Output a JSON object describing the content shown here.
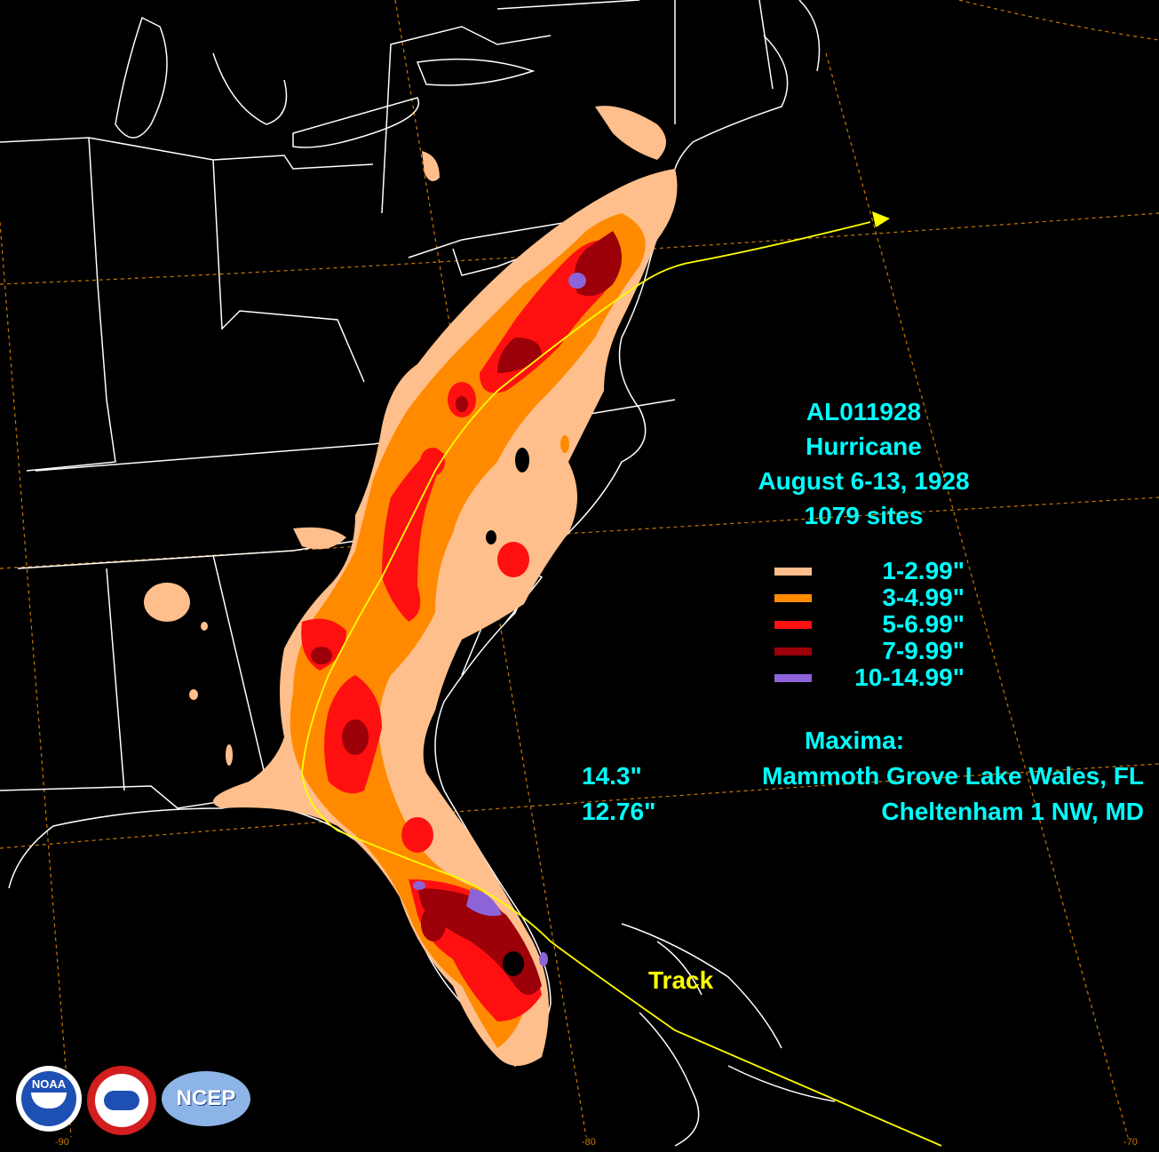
{
  "storm": {
    "id": "AL011928",
    "type": "Hurricane",
    "dates": "August 6-13, 1928",
    "sites": "1079 sites"
  },
  "legend": [
    {
      "label": "1-2.99\"",
      "color": "#ffbf8c"
    },
    {
      "label": "3-4.99\"",
      "color": "#ff8a00"
    },
    {
      "label": "5-6.99\"",
      "color": "#ff1010"
    },
    {
      "label": "7-9.99\"",
      "color": "#9c0008"
    },
    {
      "label": "10-14.99\"",
      "color": "#8c64d8"
    }
  ],
  "maxima": {
    "title": "Maxima:",
    "rows": [
      {
        "value": "14.3\"",
        "site": "Mammoth Grove Lake Wales, FL"
      },
      {
        "value": "12.76\"",
        "site": "Cheltenham 1 NW, MD"
      }
    ]
  },
  "track_label": "Track",
  "ticks": [
    "-90",
    "-80",
    "-70"
  ],
  "logos": {
    "noaa": "NOAA",
    "ncep": "NCEP"
  }
}
